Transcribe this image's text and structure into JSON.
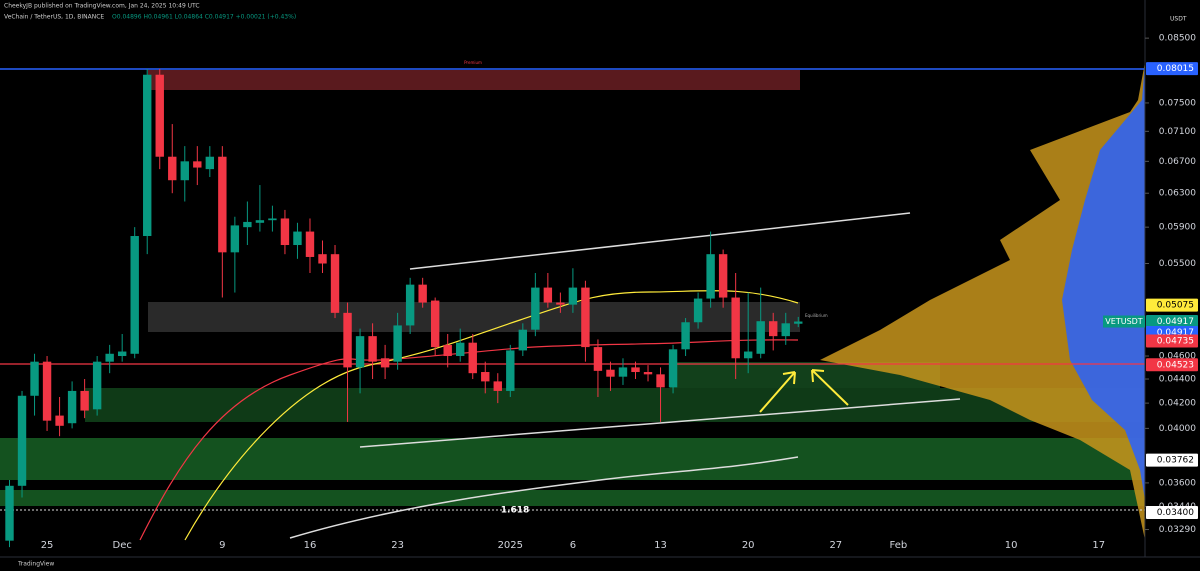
{
  "chart_data": {
    "type": "candlestick",
    "author": "CheekyJB published on TradingView.com, Jan 24, 2025 10:49 UTC",
    "title": "VeChain / TetherUS, 1D, BINANCE",
    "ohlc_header": "O0.04896 H0.04961 L0.04864 C0.04917 +0.00021 (+0.43%)",
    "currency": "USDT",
    "brand": "TradingView",
    "annotations": [
      "Premium",
      "Equilibrium",
      "1.618"
    ],
    "up_color": "#089981",
    "down_color": "#f23645",
    "log_scale": true,
    "ylim": [
      0.0312,
      0.0915
    ],
    "yticks": [
      {
        "value": 0.085,
        "label": "0.08500"
      },
      {
        "value": 0.075,
        "label": "0.07500"
      },
      {
        "value": 0.071,
        "label": "0.07100"
      },
      {
        "value": 0.067,
        "label": "0.06700"
      },
      {
        "value": 0.063,
        "label": "0.06300"
      },
      {
        "value": 0.059,
        "label": "0.05900"
      },
      {
        "value": 0.055,
        "label": "0.05500"
      },
      {
        "value": 0.046,
        "label": "0.04600"
      },
      {
        "value": 0.044,
        "label": "0.04400"
      },
      {
        "value": 0.042,
        "label": "0.04200"
      },
      {
        "value": 0.04,
        "label": "0.04000"
      },
      {
        "value": 0.036,
        "label": "0.03600"
      },
      {
        "value": 0.0344,
        "label": "0.03440"
      },
      {
        "value": 0.0329,
        "label": "0.03290"
      }
    ],
    "price_labels": [
      {
        "value": 0.08015,
        "color": "#2962ff"
      },
      {
        "value": 0.05075,
        "color": "#ffeb3b"
      },
      {
        "name": "VETUSDT",
        "value": 0.04917,
        "color": "#089981"
      },
      {
        "value": 0.04917,
        "color": "#2962ff"
      },
      {
        "value": 0.04735,
        "color": "#f23645"
      },
      {
        "value": 0.04523,
        "color": "#f23645"
      },
      {
        "value": 0.03762,
        "color": "#ffffff"
      },
      {
        "value": 0.034,
        "label": "0.03400",
        "color": "#ffffff"
      }
    ],
    "categories": [
      null,
      null,
      null,
      "25",
      null,
      null,
      null,
      null,
      null,
      "Dec",
      null,
      null,
      null,
      null,
      null,
      null,
      null,
      "9",
      null,
      null,
      null,
      null,
      null,
      null,
      "16",
      null,
      null,
      null,
      null,
      null,
      null,
      "23",
      null,
      null,
      null,
      null,
      null,
      null,
      null,
      null,
      "2025",
      null,
      null,
      null,
      null,
      "6",
      null,
      null,
      null,
      null,
      null,
      null,
      "13",
      null,
      null,
      null,
      null,
      null,
      null,
      "20",
      null,
      null,
      null,
      null,
      null,
      null,
      "27",
      null,
      null,
      null,
      null,
      "Feb",
      null,
      null,
      null,
      null,
      null,
      null,
      null,
      null,
      "10",
      null,
      null,
      null,
      null,
      null,
      null,
      "17"
    ],
    "open": [
      0.0322,
      0.0358,
      0.0426,
      0.0455,
      0.041,
      0.0404,
      0.043,
      0.0415,
      0.0455,
      0.046,
      0.0462,
      0.058,
      0.0792,
      0.0676,
      0.0646,
      0.067,
      0.066,
      0.0676,
      0.0562,
      0.059,
      0.0595,
      0.0598,
      0.06,
      0.057,
      0.0585,
      0.056,
      0.056,
      0.05,
      0.045,
      0.0478,
      0.0458,
      0.0455,
      0.0488,
      0.0528,
      0.0512,
      0.047,
      0.046,
      0.0472,
      0.0446,
      0.0438,
      0.043,
      0.0465,
      0.0484,
      0.0525,
      0.051,
      0.0508,
      0.0525,
      0.0468,
      0.0448,
      0.0442,
      0.045,
      0.0446,
      0.0444,
      0.0433,
      0.0466,
      0.0491,
      0.0514,
      0.056,
      0.0515,
      0.0458,
      0.0462,
      0.0492,
      0.0478,
      0.04896,
      null,
      null,
      null,
      null,
      null,
      null,
      null,
      null,
      null,
      null,
      null,
      null,
      null,
      null,
      null,
      null,
      null,
      null,
      null,
      null,
      null,
      null,
      null,
      null
    ],
    "high": [
      0.0362,
      0.043,
      0.0462,
      0.046,
      0.0425,
      0.0438,
      0.044,
      0.046,
      0.047,
      0.048,
      0.059,
      0.0801,
      0.0801,
      0.072,
      0.069,
      0.069,
      0.069,
      0.069,
      0.0602,
      0.062,
      0.064,
      0.0615,
      0.061,
      0.0595,
      0.06,
      0.0575,
      0.057,
      0.051,
      0.0485,
      0.049,
      0.047,
      0.05,
      0.0535,
      0.0535,
      0.0515,
      0.048,
      0.0485,
      0.048,
      0.0455,
      0.0445,
      0.047,
      0.049,
      0.054,
      0.054,
      0.052,
      0.0545,
      0.0532,
      0.0475,
      0.0455,
      0.0458,
      0.0455,
      0.0452,
      0.045,
      0.047,
      0.0495,
      0.052,
      0.0585,
      0.0565,
      0.054,
      0.052,
      0.0525,
      0.05,
      0.05,
      0.04961,
      null,
      null,
      null,
      null,
      null,
      null,
      null,
      null,
      null,
      null,
      null,
      null,
      null,
      null,
      null,
      null,
      null,
      null,
      null,
      null,
      null,
      null,
      null,
      null
    ],
    "low": [
      0.0318,
      0.035,
      0.041,
      0.0398,
      0.0394,
      0.04,
      0.0408,
      0.041,
      0.0445,
      0.0455,
      0.0458,
      0.056,
      0.066,
      0.063,
      0.062,
      0.064,
      0.065,
      0.0515,
      0.052,
      0.057,
      0.0585,
      0.0585,
      0.056,
      0.0555,
      0.054,
      0.054,
      0.0495,
      0.0405,
      0.0428,
      0.044,
      0.044,
      0.0448,
      0.048,
      0.0505,
      0.046,
      0.045,
      0.0455,
      0.044,
      0.0428,
      0.042,
      0.0425,
      0.046,
      0.0478,
      0.0505,
      0.05,
      0.05,
      0.0455,
      0.0425,
      0.043,
      0.0435,
      0.044,
      0.0438,
      0.0405,
      0.0428,
      0.046,
      0.0485,
      0.0505,
      0.0505,
      0.044,
      0.0445,
      0.0458,
      0.0465,
      0.047,
      0.04864,
      null,
      null,
      null,
      null,
      null,
      null,
      null,
      null,
      null,
      null,
      null,
      null,
      null,
      null,
      null,
      null,
      null,
      null,
      null,
      null,
      null,
      null,
      null,
      null
    ],
    "close": [
      0.0358,
      0.0426,
      0.0455,
      0.0406,
      0.0402,
      0.043,
      0.0414,
      0.0455,
      0.0462,
      0.0464,
      0.058,
      0.0792,
      0.0676,
      0.0646,
      0.067,
      0.0662,
      0.0676,
      0.0562,
      0.0592,
      0.0596,
      0.0598,
      0.06,
      0.057,
      0.0585,
      0.0557,
      0.055,
      0.05,
      0.045,
      0.0478,
      0.0455,
      0.045,
      0.0488,
      0.0528,
      0.051,
      0.0468,
      0.046,
      0.0472,
      0.0445,
      0.0438,
      0.043,
      0.0465,
      0.0484,
      0.0525,
      0.051,
      0.0508,
      0.0525,
      0.0468,
      0.0447,
      0.0442,
      0.045,
      0.0446,
      0.0444,
      0.0433,
      0.0466,
      0.0491,
      0.0514,
      0.056,
      0.0515,
      0.0458,
      0.0464,
      0.0492,
      0.0478,
      0.049,
      0.04917,
      null,
      null,
      null,
      null,
      null,
      null,
      null,
      null,
      null,
      null,
      null,
      null,
      null,
      null,
      null,
      null,
      null,
      null,
      null,
      null,
      null,
      null,
      null,
      null
    ]
  }
}
